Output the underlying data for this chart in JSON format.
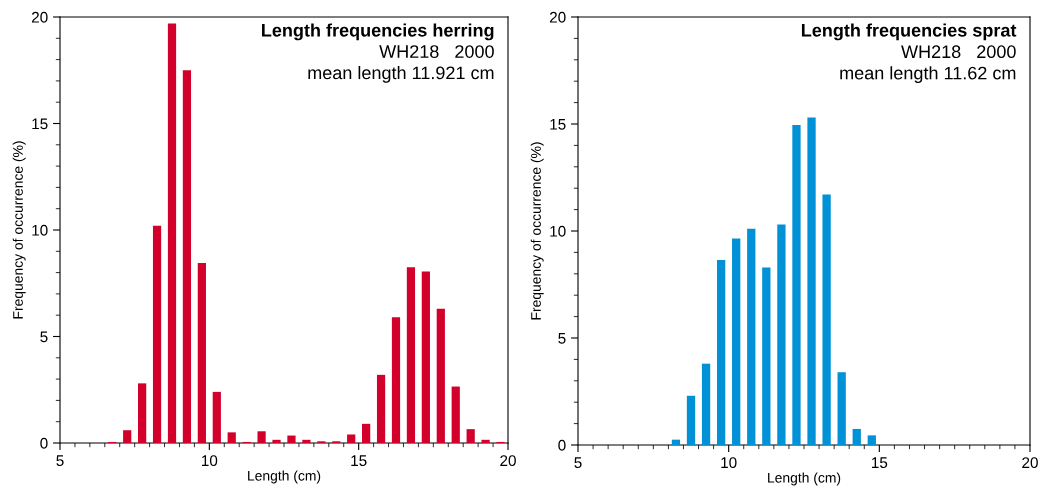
{
  "chart_data": [
    {
      "type": "histogram",
      "title": "Length frequencies herring",
      "subtitle": "WH218   2000",
      "annotations": [
        "mean length 11.921 cm"
      ],
      "xlabel": "Length (cm)",
      "ylabel": "Frequency of occurrence (%)",
      "color": "#d2002a",
      "bins": [
        6.5,
        7.0,
        7.5,
        8.0,
        8.5,
        9.0,
        9.5,
        10.0,
        10.5,
        11.0,
        11.5,
        12.0,
        12.5,
        13.0,
        13.5,
        14.0,
        14.5,
        15.0,
        15.5,
        16.0,
        16.5,
        17.0,
        17.5,
        18.0,
        18.5,
        19.0,
        19.5,
        20.0
      ],
      "values": [
        0.05,
        0.6,
        2.8,
        10.2,
        19.7,
        17.5,
        8.45,
        2.4,
        0.5,
        0.05,
        0.55,
        0.15,
        0.35,
        0.15,
        0.08,
        0.08,
        0.4,
        0.9,
        3.2,
        5.9,
        8.25,
        8.05,
        6.3,
        2.65,
        0.65,
        0.15,
        0.05
      ],
      "xlim": [
        5,
        20
      ],
      "xticks": [
        5,
        10,
        15,
        20
      ],
      "ylim": [
        0,
        20
      ],
      "yticks": [
        0,
        5,
        10,
        15,
        20
      ],
      "grid": false,
      "legend": false
    },
    {
      "type": "histogram",
      "title": "Length frequencies sprat",
      "subtitle": "WH218   2000",
      "annotations": [
        "mean length 11.62 cm"
      ],
      "xlabel": "Length (cm)",
      "ylabel": "Frequency of occurrence (%)",
      "color": "#0091d6",
      "bins": [
        8.0,
        8.5,
        9.0,
        9.5,
        10.0,
        10.5,
        11.0,
        11.5,
        12.0,
        12.5,
        13.0,
        13.5,
        14.0,
        14.5,
        15.0
      ],
      "values": [
        0.25,
        2.3,
        3.8,
        8.65,
        9.65,
        10.1,
        8.3,
        10.3,
        14.95,
        15.3,
        11.7,
        3.4,
        0.75,
        0.45
      ],
      "xlim": [
        5,
        20
      ],
      "xticks": [
        5,
        10,
        15,
        20
      ],
      "ylim": [
        0,
        20
      ],
      "yticks": [
        0,
        5,
        10,
        15,
        20
      ],
      "grid": false,
      "legend": false
    }
  ]
}
